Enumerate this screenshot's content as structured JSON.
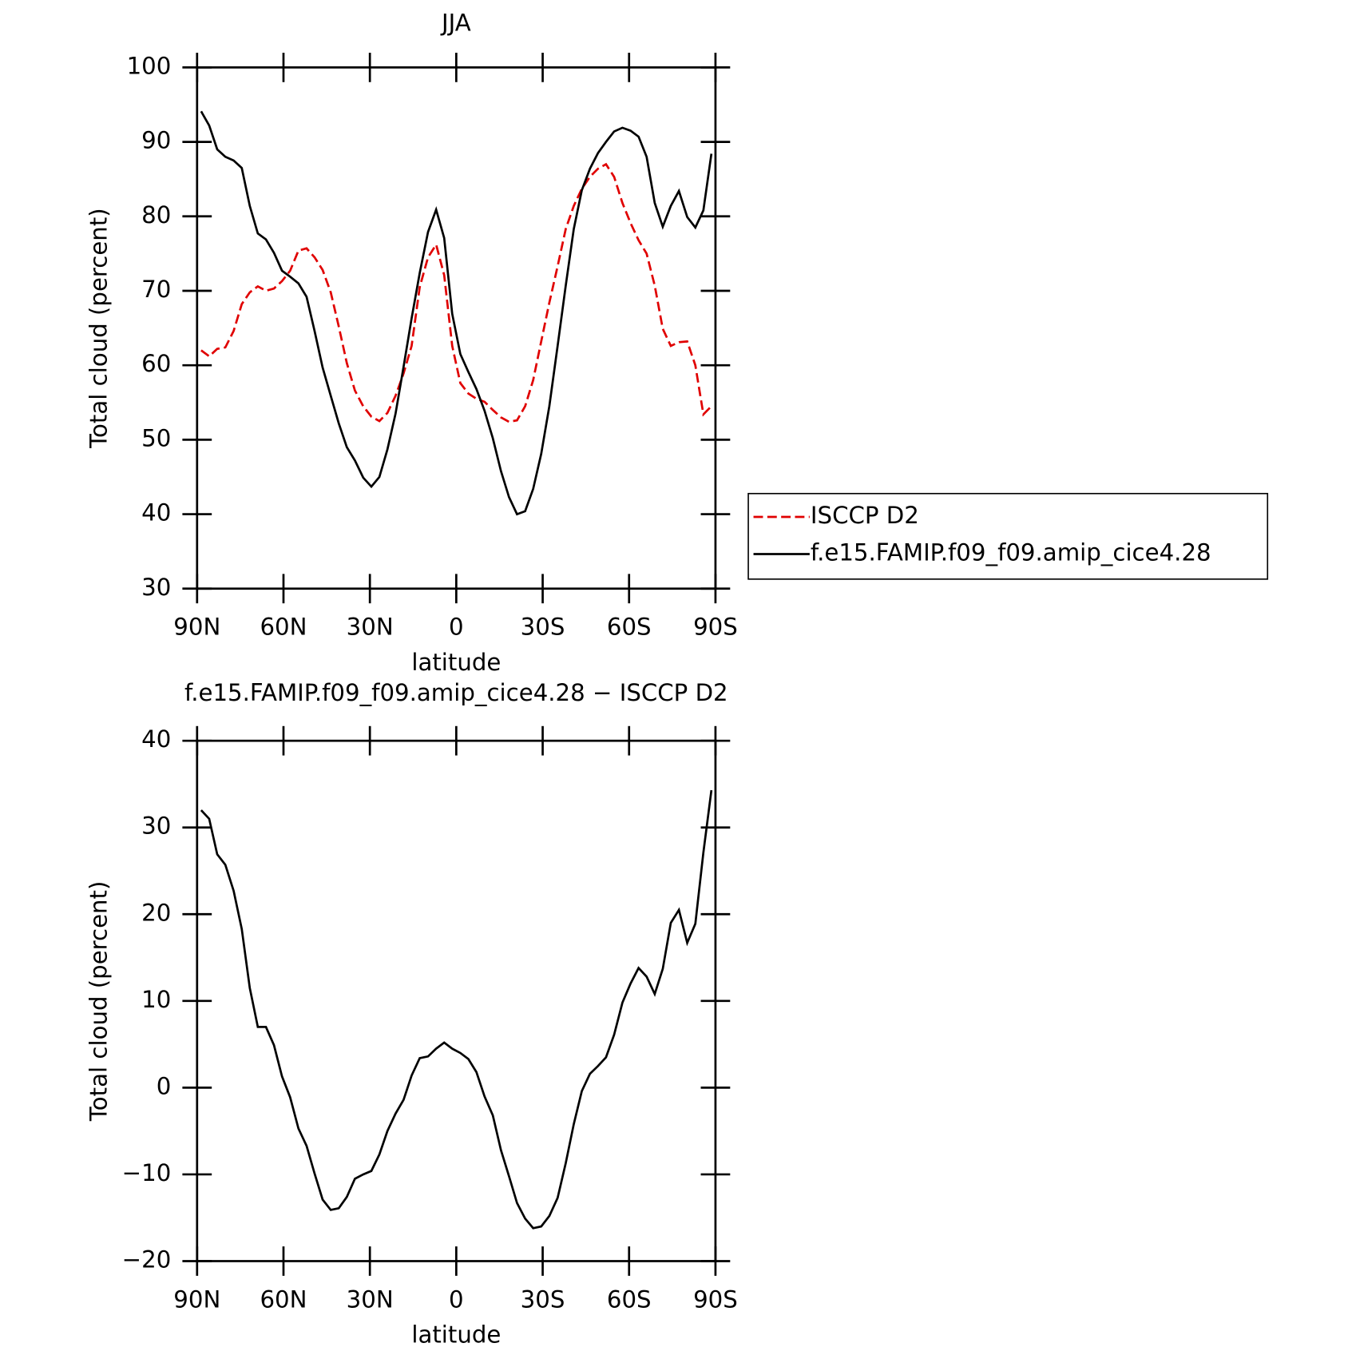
{
  "chart_data": [
    {
      "type": "line",
      "title": "JJA",
      "xlabel": "latitude",
      "ylabel": "Total cloud (percent)",
      "xlim": [
        90,
        -90
      ],
      "xticks": [
        {
          "value": 90,
          "label": "90N"
        },
        {
          "value": 60,
          "label": "60N"
        },
        {
          "value": 30,
          "label": "30N"
        },
        0,
        {
          "value": -30,
          "label": "30S"
        },
        {
          "value": -60,
          "label": "60S"
        },
        {
          "value": -90,
          "label": "90S"
        }
      ],
      "ylim": [
        30,
        100
      ],
      "yticks": [
        30,
        40,
        50,
        60,
        70,
        80,
        90,
        100
      ],
      "legend": "right",
      "x": [
        88.6,
        85.8,
        83.0,
        80.2,
        77.3,
        74.5,
        71.7,
        68.9,
        66.1,
        63.3,
        60.5,
        57.7,
        54.8,
        52.0,
        49.2,
        46.4,
        43.6,
        40.8,
        38.0,
        35.2,
        32.3,
        29.5,
        26.7,
        23.9,
        21.1,
        18.3,
        15.5,
        12.7,
        9.8,
        7.0,
        4.2,
        1.4,
        -1.4,
        -4.2,
        -7.0,
        -9.8,
        -12.7,
        -15.5,
        -18.3,
        -21.1,
        -23.9,
        -26.7,
        -29.5,
        -32.3,
        -35.2,
        -38.0,
        -40.8,
        -43.6,
        -46.4,
        -49.2,
        -52.0,
        -54.8,
        -57.7,
        -60.5,
        -63.3,
        -66.1,
        -68.9,
        -71.7,
        -74.5,
        -77.3,
        -80.2,
        -83.0,
        -85.8,
        -88.6
      ],
      "series": [
        {
          "name": "ISCCP D2",
          "color": "#e00000",
          "linestyle": "dashed",
          "values": [
            62.0,
            61.2,
            62.2,
            62.4,
            64.6,
            68.2,
            69.8,
            70.6,
            70.0,
            70.3,
            71.3,
            72.7,
            75.4,
            75.7,
            74.5,
            72.8,
            69.8,
            65.2,
            60.3,
            56.6,
            54.5,
            53.1,
            52.5,
            53.6,
            55.9,
            58.9,
            62.6,
            70.5,
            74.5,
            76.2,
            72.1,
            62.6,
            57.6,
            56.2,
            55.5,
            55.1,
            54.0,
            53.0,
            52.4,
            52.6,
            54.5,
            58.0,
            63.2,
            68.4,
            73.3,
            78.3,
            81.4,
            83.7,
            85.3,
            86.4,
            87.0,
            85.3,
            81.8,
            79.1,
            76.8,
            75.0,
            70.7,
            64.9,
            62.6,
            63.1,
            63.2,
            60.0,
            53.4,
            54.5
          ]
        },
        {
          "name": "f.e15.FAMIP.f09_f09.amip_cice4.28",
          "color": "#000000",
          "linestyle": "solid",
          "values": [
            94.1,
            92.2,
            89.0,
            88.0,
            87.5,
            86.5,
            81.4,
            77.7,
            76.9,
            75.1,
            72.7,
            71.9,
            71.0,
            69.2,
            64.6,
            59.7,
            55.9,
            52.2,
            49.0,
            47.2,
            44.9,
            43.7,
            45.0,
            48.7,
            53.5,
            59.8,
            66.3,
            72.4,
            77.9,
            80.9,
            77.1,
            66.9,
            61.5,
            59.1,
            56.8,
            53.9,
            50.2,
            45.8,
            42.3,
            40.0,
            40.4,
            43.4,
            48.1,
            54.5,
            62.6,
            70.7,
            78.3,
            83.5,
            86.4,
            88.5,
            90.0,
            91.4,
            91.9,
            91.5,
            90.7,
            88.0,
            81.8,
            78.6,
            81.4,
            83.4,
            79.9,
            78.5,
            80.8,
            88.4
          ]
        }
      ]
    },
    {
      "type": "line",
      "title": "f.e15.FAMIP.f09_f09.amip_cice4.28 − ISCCP D2",
      "xlabel": "latitude",
      "ylabel": "Total cloud (percent)",
      "xlim": [
        90,
        -90
      ],
      "xticks": [
        {
          "value": 90,
          "label": "90N"
        },
        {
          "value": 60,
          "label": "60N"
        },
        {
          "value": 30,
          "label": "30N"
        },
        0,
        {
          "value": -30,
          "label": "30S"
        },
        {
          "value": -60,
          "label": "60S"
        },
        {
          "value": -90,
          "label": "90S"
        }
      ],
      "ylim": [
        -20,
        40
      ],
      "yticks": [
        {
          "value": -20,
          "label": "−20"
        },
        {
          "value": -10,
          "label": "−10"
        },
        0,
        10,
        20,
        30,
        40
      ],
      "x": [
        88.6,
        85.8,
        83.0,
        80.2,
        77.3,
        74.5,
        71.7,
        68.9,
        66.1,
        63.3,
        60.5,
        57.7,
        54.8,
        52.0,
        49.2,
        46.4,
        43.6,
        40.8,
        38.0,
        35.2,
        32.3,
        29.5,
        26.7,
        23.9,
        21.1,
        18.3,
        15.5,
        12.7,
        9.8,
        7.0,
        4.2,
        1.4,
        -1.4,
        -4.2,
        -7.0,
        -9.8,
        -12.7,
        -15.5,
        -18.3,
        -21.1,
        -23.9,
        -26.7,
        -29.5,
        -32.3,
        -35.2,
        -38.0,
        -40.8,
        -43.6,
        -46.4,
        -49.2,
        -52.0,
        -54.8,
        -57.7,
        -60.5,
        -63.3,
        -66.1,
        -68.9,
        -71.7,
        -74.5,
        -77.3,
        -80.2,
        -83.0,
        -85.8,
        -88.6
      ],
      "color": "#000000",
      "values": [
        32.0,
        31.0,
        26.9,
        25.7,
        22.7,
        18.3,
        11.5,
        7.0,
        7.0,
        4.9,
        1.3,
        -1.1,
        -4.7,
        -6.7,
        -9.9,
        -12.9,
        -14.1,
        -13.9,
        -12.6,
        -10.5,
        -10.0,
        -9.6,
        -7.7,
        -5.0,
        -3.0,
        -1.4,
        1.4,
        3.4,
        3.6,
        4.5,
        5.2,
        4.5,
        4.0,
        3.3,
        1.8,
        -1.0,
        -3.2,
        -7.2,
        -10.2,
        -13.3,
        -15.1,
        -16.2,
        -16.0,
        -14.8,
        -12.7,
        -8.7,
        -4.2,
        -0.4,
        1.6,
        2.5,
        3.5,
        6.1,
        9.8,
        12.0,
        13.8,
        12.8,
        10.8,
        13.7,
        19.0,
        20.5,
        16.7,
        18.9,
        27.1,
        34.3
      ]
    }
  ]
}
